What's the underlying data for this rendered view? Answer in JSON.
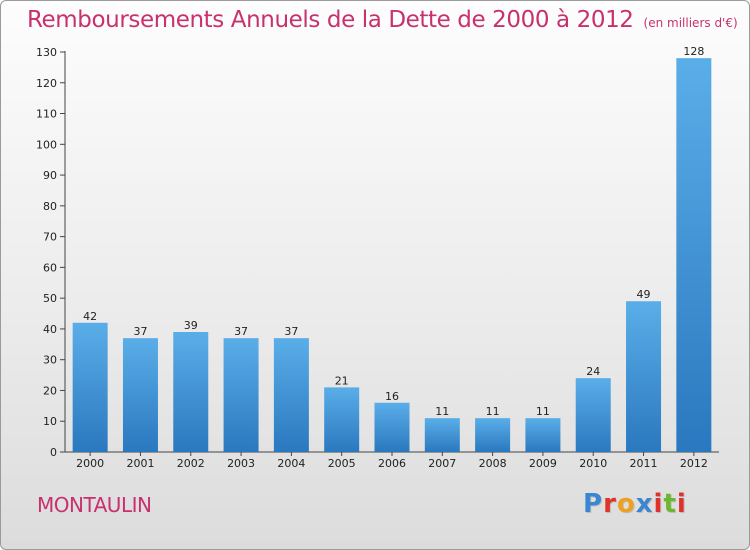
{
  "header": {
    "title": "Remboursements Annuels de la Dette de 2000 à 2012",
    "unit": "(en milliers d'€)"
  },
  "footer": {
    "commune": "MONTAULIN",
    "logo": [
      "P",
      "r",
      "o",
      "x",
      "i",
      "t",
      "i"
    ]
  },
  "colors": {
    "title": "#c8316e",
    "bar_light": "#5aaee8",
    "bar_dark": "#2a78bf",
    "logo": [
      "#3a86d0",
      "#e0322c",
      "#f0a020",
      "#3a86d0",
      "#e0322c",
      "#6ab82c",
      "#e0322c"
    ]
  },
  "chart_data": {
    "type": "bar",
    "title": "Remboursements Annuels de la Dette de 2000 à 2012",
    "ylabel": "(en milliers d'€)",
    "xlabel": "",
    "categories": [
      "2000",
      "2001",
      "2002",
      "2003",
      "2004",
      "2005",
      "2006",
      "2007",
      "2008",
      "2009",
      "2010",
      "2011",
      "2012"
    ],
    "values": [
      42,
      37,
      39,
      37,
      37,
      21,
      16,
      11,
      11,
      11,
      24,
      49,
      128
    ],
    "ylim": [
      0,
      130
    ],
    "yticks": [
      0,
      10,
      20,
      30,
      40,
      50,
      60,
      70,
      80,
      90,
      100,
      110,
      120,
      130
    ],
    "grid": false,
    "legend": "none"
  }
}
